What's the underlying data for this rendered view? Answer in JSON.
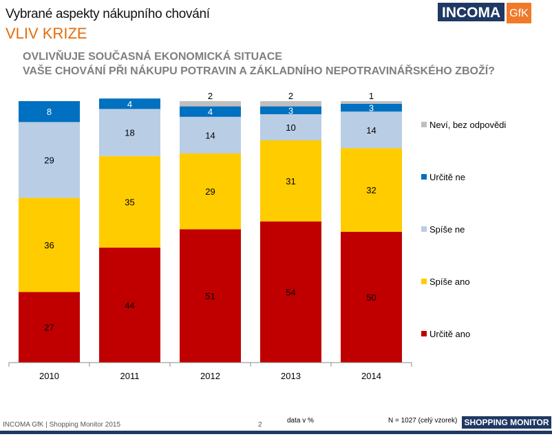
{
  "header": {
    "title": "Vybrané aspekty nákupního chování",
    "subtitle": "VLIV KRIZE",
    "question_line1": "OVLIVŇUJE SOUČASNÁ EKONOMICKÁ  SITUACE",
    "question_line2": "VAŠE CHOVÁNÍ  PŘI NÁKUPU POTRAVIN A ZÁKLADNÍHO NEPOTRAVINÁŘSKÉHO ZBOŽÍ?",
    "logo_main": "INCOMA",
    "logo_side": "GfK"
  },
  "chart_data": {
    "type": "bar",
    "stacked": true,
    "categories": [
      "2010",
      "2011",
      "2012",
      "2013",
      "2014"
    ],
    "ylim": [
      0,
      100
    ],
    "legend_placement": "right",
    "series": [
      {
        "name": "Určitě ano",
        "color": "#C00000",
        "values": [
          27,
          44,
          51,
          54,
          50
        ]
      },
      {
        "name": "Spíše ano",
        "color": "#FFCC00",
        "values": [
          36,
          35,
          29,
          31,
          32
        ]
      },
      {
        "name": "Spíše ne",
        "color": "#B9CDE5",
        "values": [
          29,
          18,
          14,
          10,
          14
        ]
      },
      {
        "name": "Určitě ne",
        "color": "#0070C0",
        "values": [
          8,
          4,
          4,
          3,
          3
        ]
      },
      {
        "name": "Neví, bez odpovědi",
        "color": "#BFBFBF",
        "values": [
          0,
          0,
          2,
          2,
          1
        ]
      }
    ]
  },
  "footer": {
    "source": "INCOMA GfK | Shopping  Monitor 2015",
    "page": "2",
    "note": "data v %",
    "sample": "N = 1027  (celý vzorek)",
    "badge": "SHOPPING MONITOR 2015"
  }
}
